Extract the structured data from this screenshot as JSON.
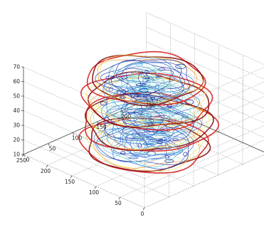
{
  "chart_data": {
    "type": "contour3",
    "title": "",
    "xlabel": "",
    "ylabel": "",
    "zlabel": "",
    "grid": true,
    "box": true,
    "xlim": [
      0,
      250
    ],
    "ylim": [
      0,
      250
    ],
    "zlim": [
      10,
      70
    ],
    "x_ticks": [
      "0",
      "50",
      "100",
      "150",
      "200",
      "250"
    ],
    "y_ticks": [
      "0",
      "50",
      "100",
      "150",
      "200",
      "250"
    ],
    "z_ticks": [
      "10",
      "20",
      "30",
      "40",
      "50",
      "60",
      "70"
    ],
    "slices": [
      {
        "z": 18,
        "center": [
          120,
          120
        ],
        "radius": [
          95,
          88
        ]
      },
      {
        "z": 33,
        "center": [
          118,
          122
        ],
        "radius": [
          100,
          92
        ]
      },
      {
        "z": 47,
        "center": [
          120,
          125
        ],
        "radius": [
          97,
          88
        ]
      },
      {
        "z": 62,
        "center": [
          122,
          124
        ],
        "radius": [
          88,
          82
        ]
      }
    ],
    "colormap": [
      "#1f2a9a",
      "#2f6fd6",
      "#4ec0e0",
      "#9be0c8",
      "#f4e44a",
      "#f39a2a",
      "#d62020",
      "#8a0f0f"
    ]
  }
}
